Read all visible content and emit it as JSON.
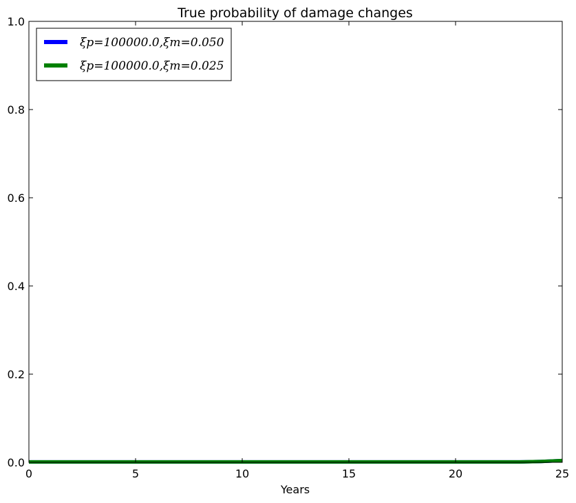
{
  "chart_data": {
    "type": "line",
    "title": "True probability of damage changes",
    "xlabel": "Years",
    "ylabel": "",
    "xlim": [
      0,
      25
    ],
    "ylim": [
      0.0,
      1.0
    ],
    "xticks": [
      0,
      5,
      10,
      15,
      20,
      25
    ],
    "yticks": [
      0.0,
      0.2,
      0.4,
      0.6,
      0.8,
      1.0
    ],
    "xtick_labels": [
      "0",
      "5",
      "10",
      "15",
      "20",
      "25"
    ],
    "ytick_labels": [
      "0.0",
      "0.2",
      "0.4",
      "0.6",
      "0.8",
      "1.0"
    ],
    "grid": false,
    "legend_position": "top-left",
    "series": [
      {
        "name": "ξp=100000.0,ξm=0.050",
        "color": "#0000ff",
        "x": [
          0,
          5,
          10,
          15,
          20,
          23,
          24,
          25
        ],
        "y": [
          0.001,
          0.001,
          0.001,
          0.001,
          0.001,
          0.001,
          0.002,
          0.004
        ]
      },
      {
        "name": "ξp=100000.0,ξm=0.025",
        "color": "#008000",
        "x": [
          0,
          5,
          10,
          15,
          20,
          23,
          24,
          25
        ],
        "y": [
          0.001,
          0.001,
          0.001,
          0.001,
          0.001,
          0.001,
          0.002,
          0.004
        ]
      }
    ]
  }
}
